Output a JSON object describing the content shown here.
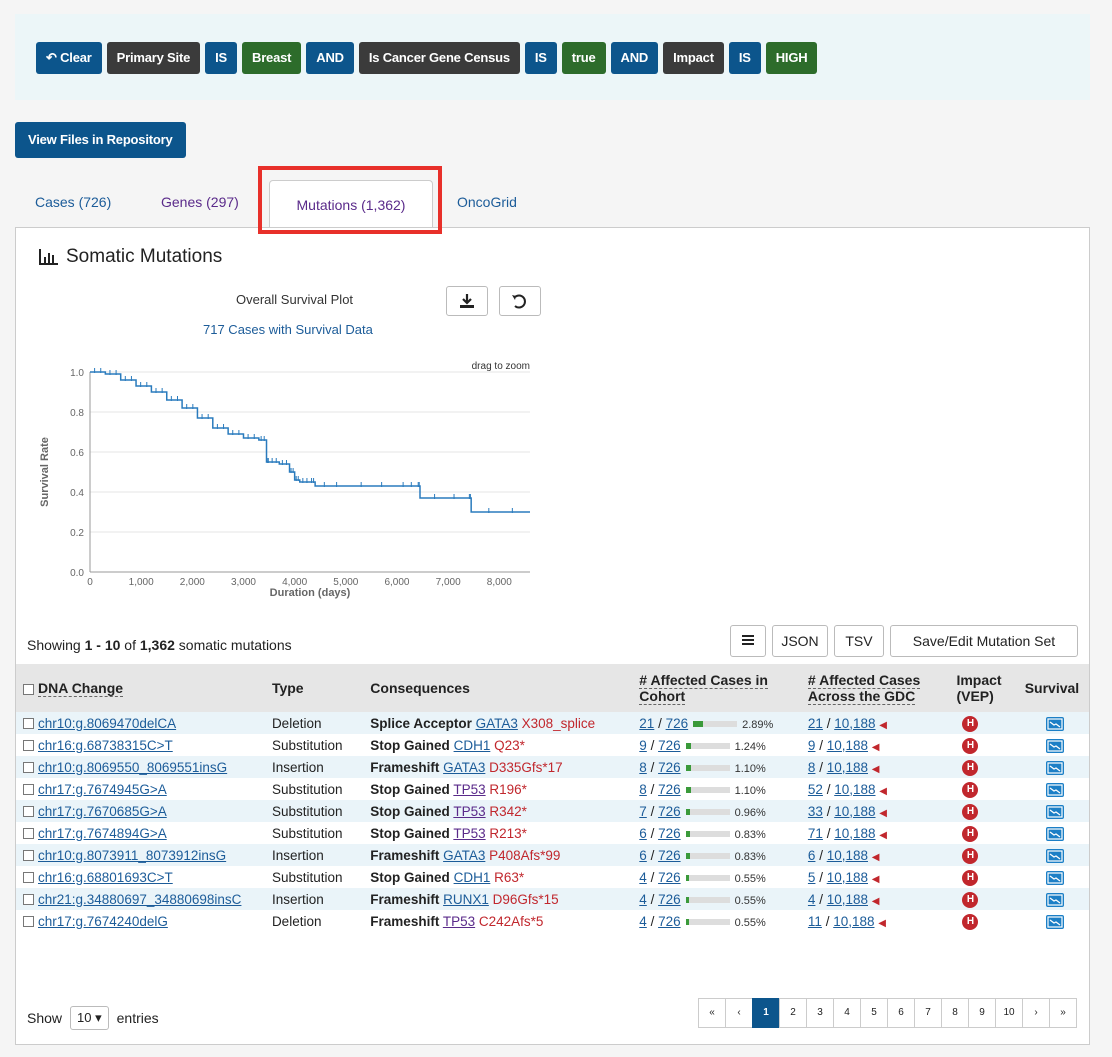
{
  "query": {
    "pills": [
      {
        "text": "↶ Clear",
        "kind": "blue",
        "name": "clear-query-button",
        "interactable": true
      },
      {
        "text": "Primary Site",
        "kind": "dark",
        "name": "filter-field-primary-site",
        "interactable": true
      },
      {
        "text": "IS",
        "kind": "blue",
        "name": "operator-is",
        "interactable": true
      },
      {
        "text": "Breast",
        "kind": "green",
        "name": "filter-value-breast",
        "interactable": true
      },
      {
        "text": "AND",
        "kind": "blue",
        "name": "operator-and",
        "interactable": false
      },
      {
        "text": "Is Cancer Gene Census",
        "kind": "dark",
        "name": "filter-field-cancer-gene-census",
        "interactable": true
      },
      {
        "text": "IS",
        "kind": "blue",
        "name": "operator-is",
        "interactable": true
      },
      {
        "text": "true",
        "kind": "green",
        "name": "filter-value-true",
        "interactable": true
      },
      {
        "text": "AND",
        "kind": "blue",
        "name": "operator-and",
        "interactable": false
      },
      {
        "text": "Impact",
        "kind": "dark",
        "name": "filter-field-impact",
        "interactable": true
      },
      {
        "text": "IS",
        "kind": "blue",
        "name": "operator-is",
        "interactable": true
      },
      {
        "text": "HIGH",
        "kind": "green",
        "name": "filter-value-high",
        "interactable": true
      }
    ]
  },
  "view_files_label": "View Files in Repository",
  "tabs": {
    "cases": "Cases (726)",
    "genes": "Genes (297)",
    "mutations": "Mutations (1,362)",
    "oncogrid": "OncoGrid"
  },
  "panel": {
    "title": "Somatic Mutations",
    "survival_title": "Overall Survival Plot",
    "survival_sub": "717 Cases with Survival Data",
    "drag_hint": "drag to zoom",
    "xlabel": "Duration (days)",
    "ylabel": "Survival Rate"
  },
  "chart_data": {
    "type": "line",
    "title": "Overall Survival Plot",
    "xlabel": "Duration (days)",
    "ylabel": "Survival Rate",
    "xlim": [
      0,
      8600
    ],
    "ylim": [
      0,
      1.0
    ],
    "x_ticks": [
      "0",
      "1,000",
      "2,000",
      "3,000",
      "4,000",
      "5,000",
      "6,000",
      "7,000",
      "8,000"
    ],
    "y_ticks": [
      "0.0",
      "0.2",
      "0.4",
      "0.6",
      "0.8",
      "1.0"
    ],
    "series": [
      {
        "x": [
          0,
          300,
          600,
          900,
          1200,
          1500,
          1800,
          2100,
          2400,
          2700,
          3000,
          3300,
          3450,
          3500,
          3700,
          3900,
          4000,
          4100,
          4300,
          4400,
          5000,
          6000,
          6400,
          6450,
          7400,
          7450,
          8600
        ],
        "y": [
          1.0,
          0.99,
          0.96,
          0.93,
          0.9,
          0.86,
          0.82,
          0.77,
          0.72,
          0.69,
          0.67,
          0.66,
          0.55,
          0.55,
          0.54,
          0.5,
          0.46,
          0.45,
          0.45,
          0.43,
          0.43,
          0.43,
          0.43,
          0.37,
          0.37,
          0.3,
          0.3
        ]
      }
    ]
  },
  "showing": {
    "prefix": "Showing ",
    "range": "1 - 10",
    "of": " of ",
    "total": "1,362",
    "suffix": " somatic mutations"
  },
  "toolbar": {
    "json": "JSON",
    "tsv": "TSV",
    "save": "Save/Edit Mutation Set"
  },
  "table": {
    "headers": {
      "dna": "DNA Change",
      "type": "Type",
      "consequences": "Consequences",
      "cohort": "# Affected Cases in Cohort",
      "gdc": "# Affected Cases Across the GDC",
      "impact": "Impact (VEP)",
      "survival": "Survival"
    },
    "rows": [
      {
        "dna": "chr10:g.8069470delCA",
        "type": "Deletion",
        "cons": "Splice Acceptor",
        "gene": "GATA3",
        "aa": "X308_splice",
        "coh": "21",
        "cohTotal": "726",
        "pct": "2.89%",
        "pctVal": 2.89,
        "gdc": "21",
        "gdcTotal": "10,188",
        "impact": "H"
      },
      {
        "dna": "chr16:g.68738315C>T",
        "type": "Substitution",
        "cons": "Stop Gained",
        "gene": "CDH1",
        "aa": "Q23*",
        "coh": "9",
        "cohTotal": "726",
        "pct": "1.24%",
        "pctVal": 1.24,
        "gdc": "9",
        "gdcTotal": "10,188",
        "impact": "H"
      },
      {
        "dna": "chr10:g.8069550_8069551insG",
        "type": "Insertion",
        "cons": "Frameshift",
        "gene": "GATA3",
        "aa": "D335Gfs*17",
        "coh": "8",
        "cohTotal": "726",
        "pct": "1.10%",
        "pctVal": 1.1,
        "gdc": "8",
        "gdcTotal": "10,188",
        "impact": "H"
      },
      {
        "dna": "chr17:g.7674945G>A",
        "type": "Substitution",
        "cons": "Stop Gained",
        "gene": "TP53",
        "aa": "R196*",
        "coh": "8",
        "cohTotal": "726",
        "pct": "1.10%",
        "pctVal": 1.1,
        "gdc": "52",
        "gdcTotal": "10,188",
        "impact": "H"
      },
      {
        "dna": "chr17:g.7670685G>A",
        "type": "Substitution",
        "cons": "Stop Gained",
        "gene": "TP53",
        "aa": "R342*",
        "coh": "7",
        "cohTotal": "726",
        "pct": "0.96%",
        "pctVal": 0.96,
        "gdc": "33",
        "gdcTotal": "10,188",
        "impact": "H"
      },
      {
        "dna": "chr17:g.7674894G>A",
        "type": "Substitution",
        "cons": "Stop Gained",
        "gene": "TP53",
        "aa": "R213*",
        "coh": "6",
        "cohTotal": "726",
        "pct": "0.83%",
        "pctVal": 0.83,
        "gdc": "71",
        "gdcTotal": "10,188",
        "impact": "H"
      },
      {
        "dna": "chr10:g.8073911_8073912insG",
        "type": "Insertion",
        "cons": "Frameshift",
        "gene": "GATA3",
        "aa": "P408Afs*99",
        "coh": "6",
        "cohTotal": "726",
        "pct": "0.83%",
        "pctVal": 0.83,
        "gdc": "6",
        "gdcTotal": "10,188",
        "impact": "H"
      },
      {
        "dna": "chr16:g.68801693C>T",
        "type": "Substitution",
        "cons": "Stop Gained",
        "gene": "CDH1",
        "aa": "R63*",
        "coh": "4",
        "cohTotal": "726",
        "pct": "0.55%",
        "pctVal": 0.55,
        "gdc": "5",
        "gdcTotal": "10,188",
        "impact": "H"
      },
      {
        "dna": "chr21:g.34880697_34880698insC",
        "type": "Insertion",
        "cons": "Frameshift",
        "gene": "RUNX1",
        "aa": "D96Gfs*15",
        "coh": "4",
        "cohTotal": "726",
        "pct": "0.55%",
        "pctVal": 0.55,
        "gdc": "4",
        "gdcTotal": "10,188",
        "impact": "H"
      },
      {
        "dna": "chr17:g.7674240delG",
        "type": "Deletion",
        "cons": "Frameshift",
        "gene": "TP53",
        "aa": "C242Afs*5",
        "coh": "4",
        "cohTotal": "726",
        "pct": "0.55%",
        "pctVal": 0.55,
        "gdc": "11",
        "gdcTotal": "10,188",
        "impact": "H"
      }
    ]
  },
  "footer": {
    "show": "Show",
    "page_size": "10",
    "entries": "entries",
    "pages": [
      "«",
      "‹",
      "1",
      "2",
      "3",
      "4",
      "5",
      "6",
      "7",
      "8",
      "9",
      "10",
      "›",
      "»"
    ],
    "active_page": "1"
  }
}
